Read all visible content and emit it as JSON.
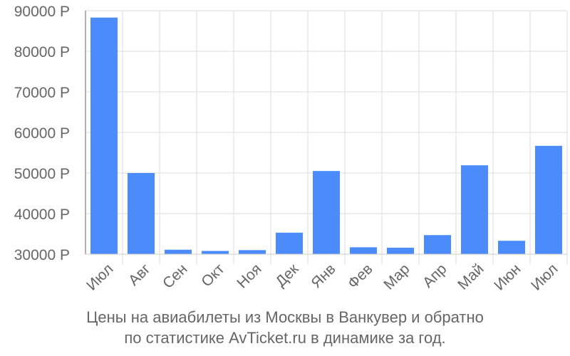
{
  "chart_data": {
    "type": "bar",
    "categories": [
      "Июл",
      "Авг",
      "Сен",
      "Окт",
      "Ноя",
      "Дек",
      "Янв",
      "Фев",
      "Мар",
      "Апр",
      "Май",
      "Июн",
      "Июл"
    ],
    "values": [
      88300,
      50000,
      31100,
      30800,
      31000,
      35300,
      50500,
      31700,
      31600,
      34700,
      51900,
      33300,
      56700
    ],
    "ylim": [
      30000,
      90000
    ],
    "yticks": [
      30000,
      40000,
      50000,
      60000,
      70000,
      80000,
      90000
    ],
    "ytick_labels": [
      "30000 Р",
      "40000 Р",
      "50000 Р",
      "60000 Р",
      "70000 Р",
      "80000 Р",
      "90000 Р"
    ],
    "grid": true,
    "legend": "none",
    "bar_color": "#4b8bfb",
    "grid_color": "#dddddd",
    "label_color": "#666666"
  },
  "caption": {
    "line1": "Цены на авиабилеты из Москвы в Ванкувер и обратно",
    "line2": "по статистике AvTicket.ru в динамике за год."
  }
}
